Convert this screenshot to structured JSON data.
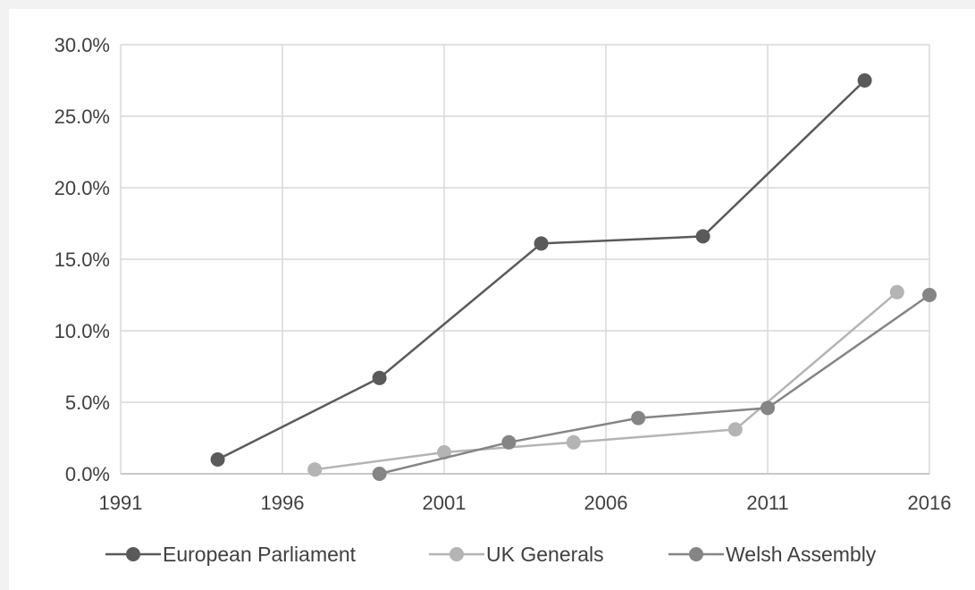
{
  "chart_data": {
    "type": "line",
    "title": "",
    "xlabel": "",
    "ylabel": "",
    "xlim": [
      1991,
      2016
    ],
    "ylim": [
      0,
      30
    ],
    "x_ticks": [
      1991,
      1996,
      2001,
      2006,
      2011,
      2016
    ],
    "y_ticks": [
      0,
      5,
      10,
      15,
      20,
      25,
      30
    ],
    "x_tick_labels": [
      "1991",
      "1996",
      "2001",
      "2006",
      "2011",
      "2016"
    ],
    "y_tick_labels": [
      "0.0%",
      "5.0%",
      "10.0%",
      "15.0%",
      "20.0%",
      "25.0%",
      "30.0%"
    ],
    "grid": true,
    "legend_position": "bottom",
    "series": [
      {
        "name": "European Parliament",
        "color": "#5a5a5a",
        "points": [
          [
            1994,
            1.0
          ],
          [
            1999,
            6.7
          ],
          [
            2004,
            16.1
          ],
          [
            2009,
            16.6
          ],
          [
            2014,
            27.5
          ]
        ]
      },
      {
        "name": "UK Generals",
        "color": "#b4b4b4",
        "points": [
          [
            1997,
            0.3
          ],
          [
            2001,
            1.5
          ],
          [
            2005,
            2.2
          ],
          [
            2010,
            3.1
          ],
          [
            2015,
            12.7
          ]
        ]
      },
      {
        "name": "Welsh Assembly",
        "color": "#858585",
        "points": [
          [
            1999,
            0.0
          ],
          [
            2003,
            2.2
          ],
          [
            2007,
            3.9
          ],
          [
            2011,
            4.6
          ],
          [
            2016,
            12.5
          ]
        ]
      }
    ]
  }
}
